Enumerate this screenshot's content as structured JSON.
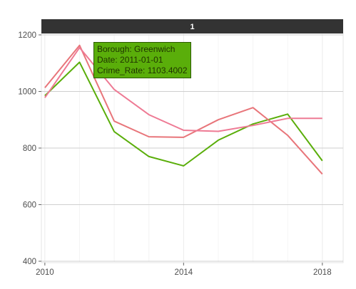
{
  "chart_data": {
    "type": "line",
    "facet_label": "1",
    "x": [
      2010,
      2011,
      2012,
      2013,
      2014,
      2015,
      2016,
      2017,
      2018
    ],
    "xlim": [
      2009.9,
      2018.6
    ],
    "ylim": [
      395,
      1205
    ],
    "xticks": [
      2010,
      2014,
      2018
    ],
    "yticks": [
      400,
      600,
      800,
      1000,
      1200
    ],
    "grid": true,
    "series": [
      {
        "color": "#5aae0a",
        "values": [
          985,
          1103.4,
          858,
          770,
          737,
          828,
          885,
          920,
          755
        ]
      },
      {
        "color": "#e8757a",
        "values": [
          1013,
          1163,
          895,
          840,
          838,
          900,
          943,
          845,
          708
        ]
      },
      {
        "color": "#ee7a94",
        "values": [
          978,
          1155,
          1007,
          918,
          863,
          859,
          880,
          905,
          905
        ]
      }
    ]
  },
  "tooltip": {
    "line1": "Borough: Greenwich",
    "line2": "Date: 2011-01-01",
    "line3": "Crime_Rate: 1103.4002",
    "color": "#5aae0a"
  }
}
